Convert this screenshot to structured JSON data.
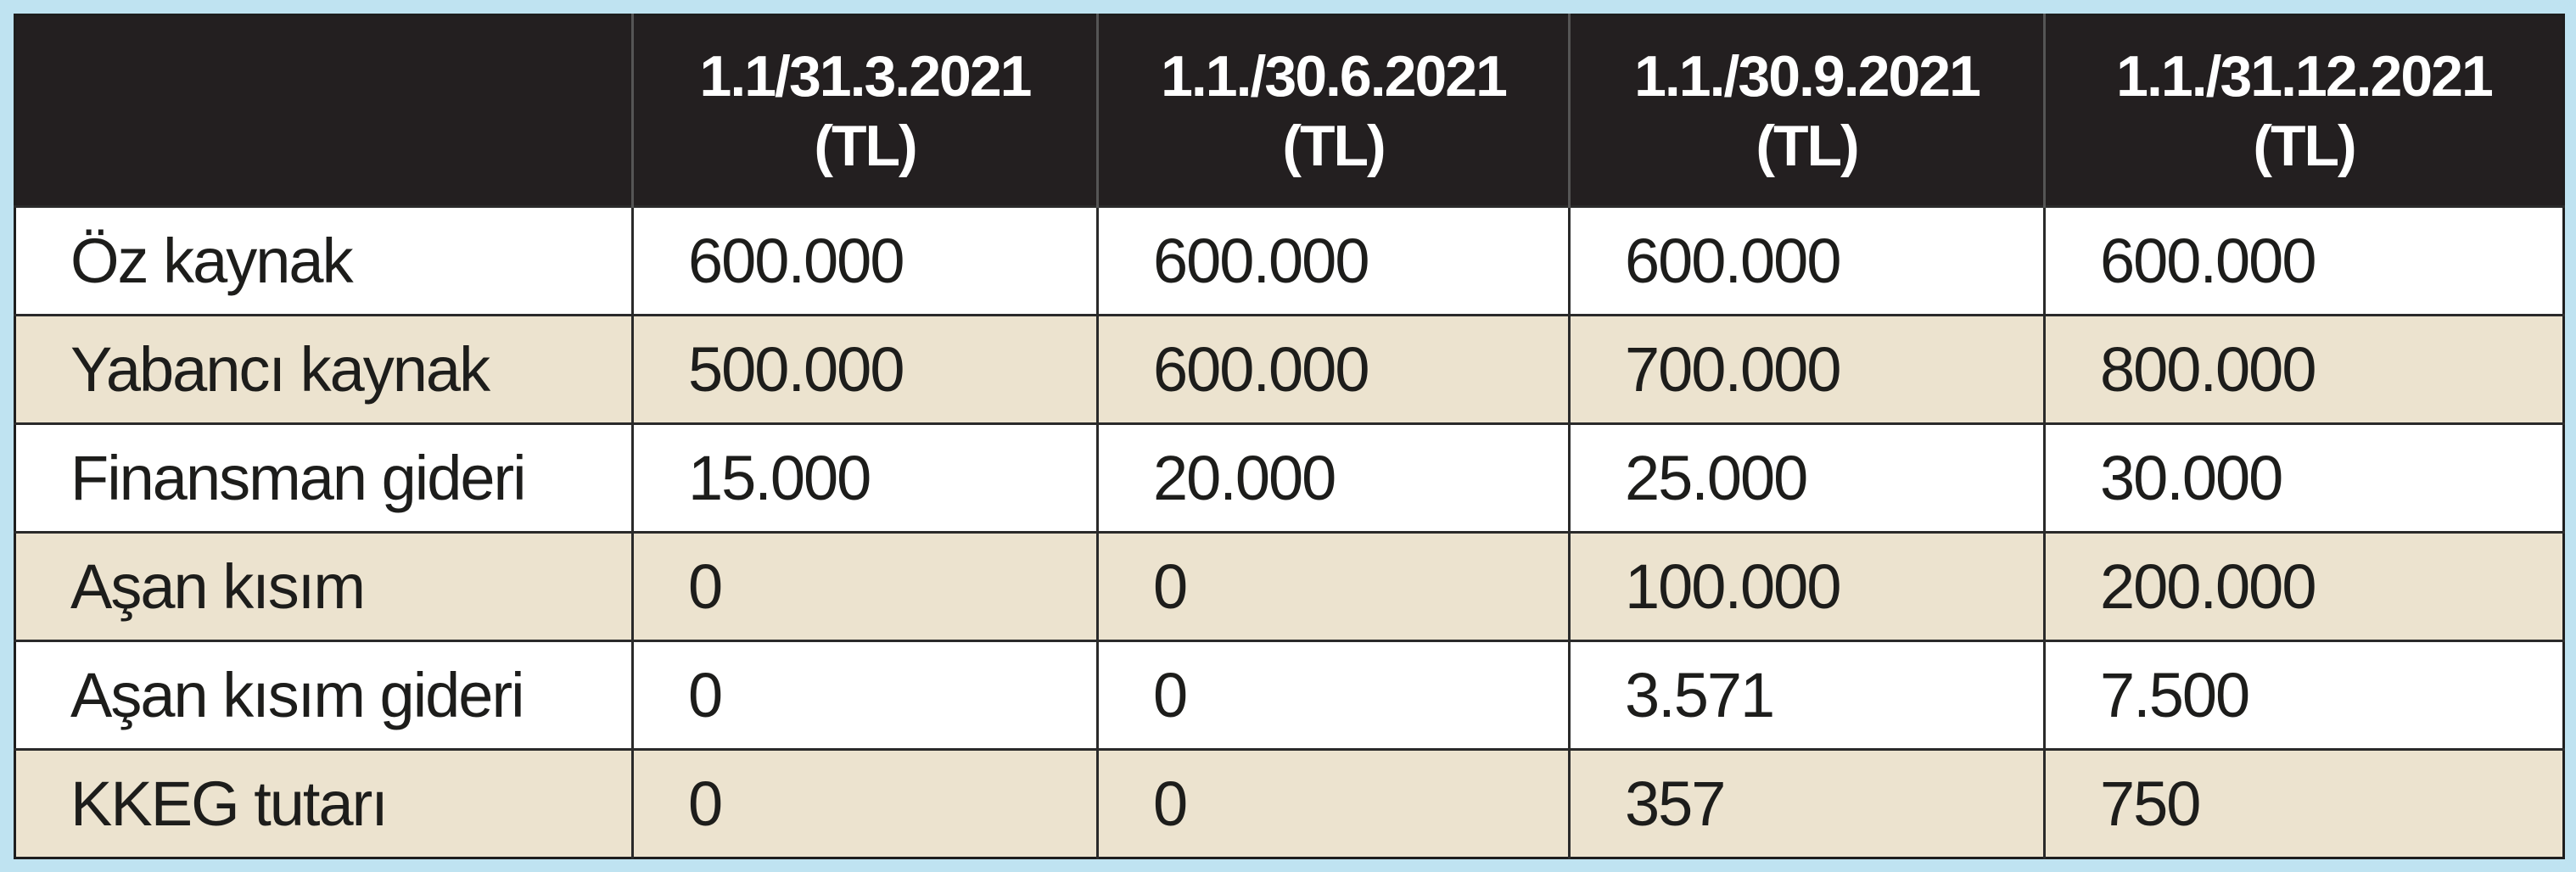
{
  "table": {
    "columns": [
      {
        "line1": "",
        "line2": ""
      },
      {
        "line1": "1.1/31.3.2021",
        "line2": "(TL)"
      },
      {
        "line1": "1.1./30.6.2021",
        "line2": "(TL)"
      },
      {
        "line1": "1.1./30.9.2021",
        "line2": "(TL)"
      },
      {
        "line1": "1.1./31.12.2021",
        "line2": "(TL)"
      }
    ],
    "rows": [
      {
        "label": "Öz kaynak",
        "values": [
          "600.000",
          "600.000",
          "600.000",
          "600.000"
        ]
      },
      {
        "label": "Yabancı kaynak",
        "values": [
          "500.000",
          "600.000",
          "700.000",
          "800.000"
        ]
      },
      {
        "label": "Finansman gideri",
        "values": [
          "15.000",
          "20.000",
          "25.000",
          "30.000"
        ]
      },
      {
        "label": "Aşan kısım",
        "values": [
          "0",
          "0",
          "100.000",
          "200.000"
        ]
      },
      {
        "label": "Aşan kısım gideri",
        "values": [
          "0",
          "0",
          "3.571",
          "7.500"
        ]
      },
      {
        "label": "KKEG tutarı",
        "values": [
          "0",
          "0",
          "357",
          "750"
        ]
      }
    ]
  },
  "colors": {
    "header_bg": "#231f20",
    "header_text": "#ffffff",
    "band_bg": "#ece3cf",
    "frame_bg": "#bfe3f1"
  }
}
